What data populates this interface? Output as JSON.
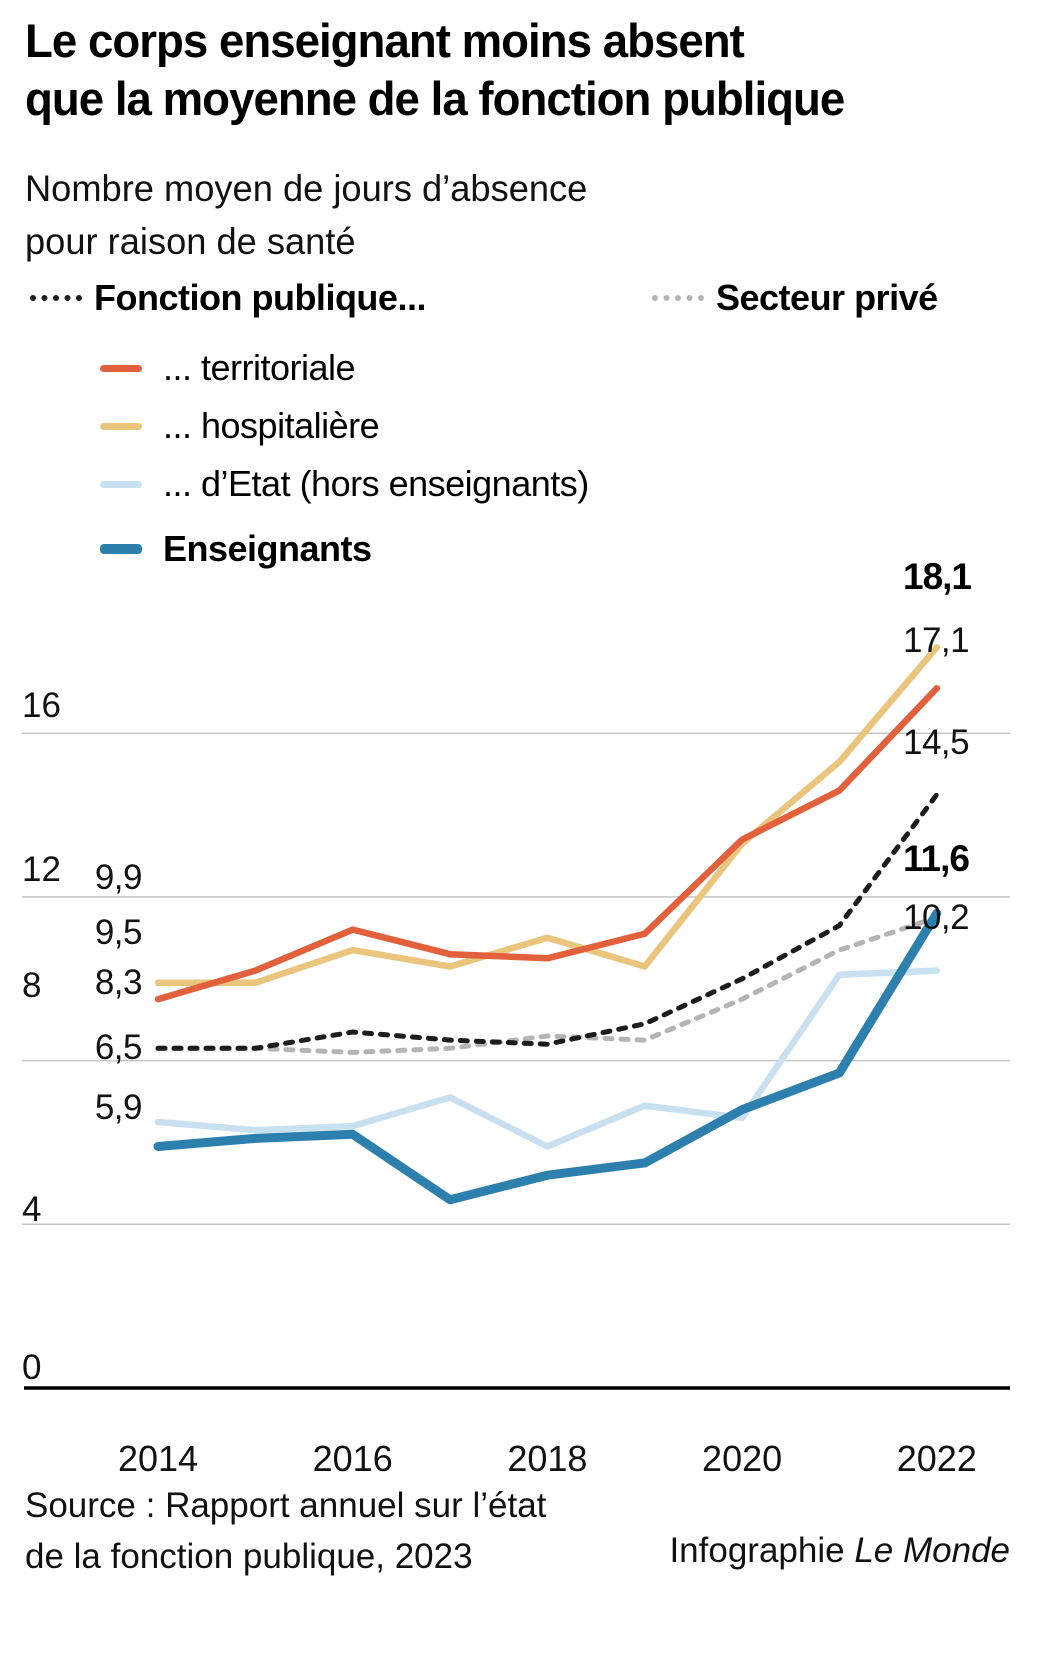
{
  "title": {
    "line1": "Le corps enseignant moins absent",
    "line2": "que la moyenne de la fonction publique"
  },
  "subtitle": {
    "line1": "Nombre moyen de jours d’absence",
    "line2": "pour raison de santé"
  },
  "legend": {
    "fonction_publique": {
      "label": "Fonction publique...",
      "color": "#1c1c1c",
      "style": "dotted"
    },
    "secteur_prive": {
      "label": "Secteur privé",
      "color": "#b4b4b4",
      "style": "dotted"
    },
    "territoriale": {
      "label": "... territoriale",
      "color": "#e2613c",
      "style": "solid"
    },
    "hospitaliere": {
      "label": "... hospitalière",
      "color": "#e9c57e",
      "style": "solid"
    },
    "etat": {
      "label": "... d’Etat (hors enseignants)",
      "color": "#c9e0f0",
      "style": "solid"
    },
    "enseignants": {
      "label": "Enseignants",
      "color": "#2d7fae",
      "style": "solid"
    }
  },
  "chart_data": {
    "type": "line",
    "x": [
      2014,
      2015,
      2016,
      2017,
      2018,
      2019,
      2020,
      2021,
      2022
    ],
    "x_tick_labels": [
      "2014",
      "2016",
      "2018",
      "2020",
      "2022"
    ],
    "x_tick_years": [
      2014,
      2016,
      2018,
      2020,
      2022
    ],
    "y_ticks": [
      0,
      4,
      8,
      12,
      16
    ],
    "y_tick_labels": [
      "0",
      "4",
      "8",
      "12",
      "16"
    ],
    "ylim": [
      0,
      20
    ],
    "grid": true,
    "legend_position": "top-left",
    "axis_color": "#000000",
    "grid_color": "#c6c6c6",
    "series": [
      {
        "id": "fonction_publique",
        "name": "Fonction publique (ensemble)",
        "color": "#1c1c1c",
        "dotted": true,
        "line_width": 5,
        "values": [
          8.3,
          8.3,
          8.7,
          8.5,
          8.4,
          8.9,
          10.0,
          11.3,
          14.5
        ],
        "start_label": "8,3",
        "end_label": "14,5",
        "end_label_bold": false
      },
      {
        "id": "secteur_prive",
        "name": "Secteur privé",
        "color": "#b4b4b4",
        "dotted": true,
        "line_width": 5,
        "values": [
          8.3,
          8.3,
          8.2,
          8.3,
          8.6,
          8.5,
          9.5,
          10.7,
          11.5
        ],
        "start_label": "",
        "end_label": "",
        "end_label_bold": false
      },
      {
        "id": "territoriale",
        "name": "Fonction publique territoriale",
        "color": "#e2613c",
        "dotted": false,
        "line_width": 6.5,
        "values": [
          9.5,
          10.2,
          11.2,
          10.6,
          10.5,
          11.1,
          13.4,
          14.6,
          17.1
        ],
        "start_label": "9,5",
        "end_label": "17,1",
        "end_label_bold": false
      },
      {
        "id": "hospitaliere",
        "name": "Fonction publique hospitalière",
        "color": "#e9c57e",
        "dotted": false,
        "line_width": 6.5,
        "values": [
          9.9,
          9.9,
          10.7,
          10.3,
          11.0,
          10.3,
          13.3,
          15.3,
          18.1
        ],
        "start_label": "9,9",
        "end_label": "18,1",
        "end_label_bold": true
      },
      {
        "id": "etat",
        "name": "Fonction publique d’Etat (hors enseignants)",
        "color": "#c9e0f0",
        "dotted": false,
        "line_width": 6.5,
        "values": [
          6.5,
          6.3,
          6.4,
          7.1,
          5.9,
          6.9,
          6.6,
          10.1,
          10.2
        ],
        "start_label": "6,5",
        "end_label": "10,2",
        "end_label_bold": false
      },
      {
        "id": "enseignants",
        "name": "Enseignants",
        "color": "#2d7fae",
        "dotted": false,
        "line_width": 9,
        "values": [
          5.9,
          6.1,
          6.2,
          4.6,
          5.2,
          5.5,
          6.8,
          7.7,
          11.6
        ],
        "start_label": "5,9",
        "end_label": "11,6",
        "end_label_bold": true
      }
    ]
  },
  "footer": {
    "source_line1": "Source : Rapport annuel sur l’état",
    "source_line2": "de la fonction publique, 2023",
    "credit_prefix": "Infographie ",
    "credit_name": "Le Monde"
  }
}
